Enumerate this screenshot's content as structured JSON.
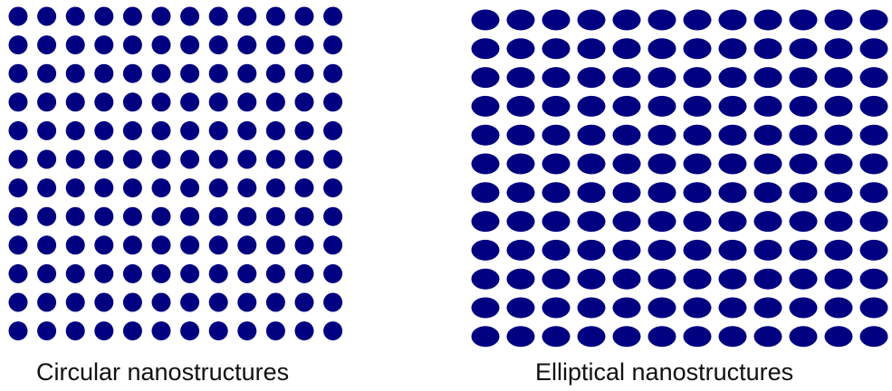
{
  "dot_color": "#000080",
  "panels": [
    {
      "caption": "Circular nanostructures",
      "shape": "circle",
      "rows": 12,
      "cols": 12
    },
    {
      "caption": "Elliptical nanostructures",
      "shape": "ellipse",
      "rows": 12,
      "cols": 12
    }
  ]
}
